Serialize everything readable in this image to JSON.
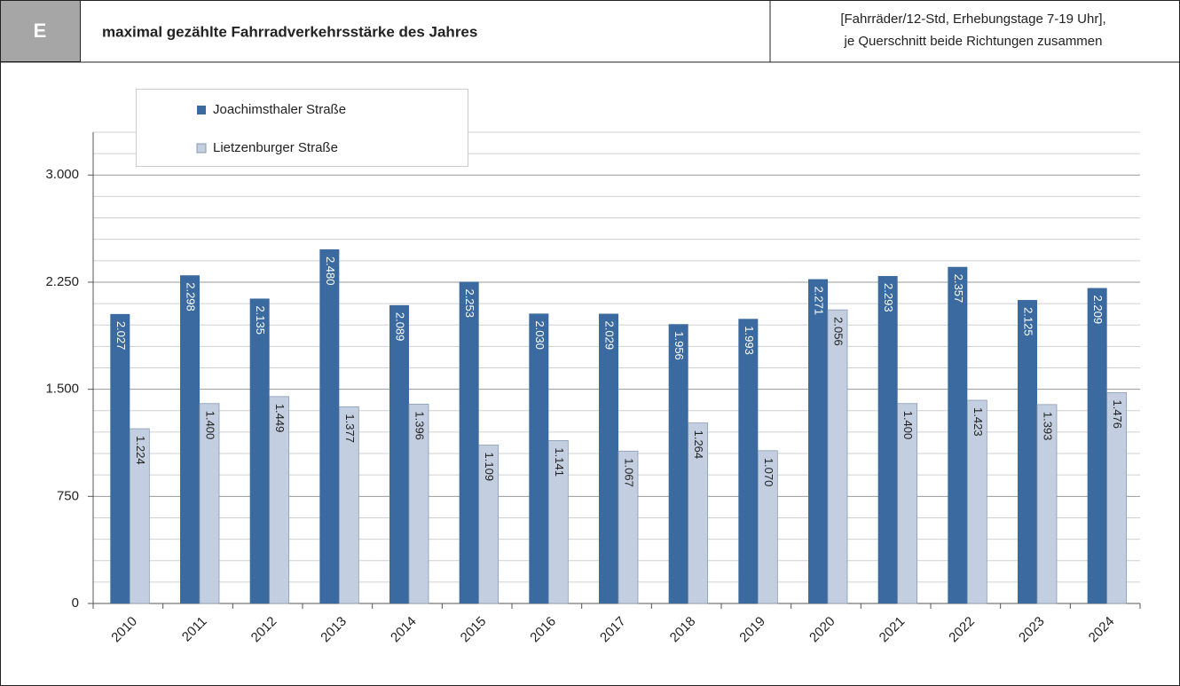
{
  "header": {
    "letter": "E",
    "title": "maximal gezählte Fahrradverkehrsstärke des Jahres",
    "unit_lines": [
      "[Fahrräder/12-Std, Erhebungstage 7-19 Uhr],",
      "je Querschnitt beide Richtungen zusammen"
    ]
  },
  "chart_data": {
    "type": "bar",
    "categories": [
      "2010",
      "2011",
      "2012",
      "2013",
      "2014",
      "2015",
      "2016",
      "2017",
      "2018",
      "2019",
      "2020",
      "2021",
      "2022",
      "2023",
      "2024"
    ],
    "series": [
      {
        "name": "Joachimsthaler Straße",
        "color": "#3a6a9f",
        "values": [
          2027,
          2298,
          2135,
          2480,
          2089,
          2253,
          2030,
          2029,
          1956,
          1993,
          2271,
          2293,
          2357,
          2125,
          2209
        ],
        "value_labels": [
          "2.027",
          "2.298",
          "2.135",
          "2.480",
          "2.089",
          "2.253",
          "2.030",
          "2.029",
          "1.956",
          "1.993",
          "2.271",
          "2.293",
          "2.357",
          "2.125",
          "2.209"
        ]
      },
      {
        "name": "Lietzenburger Straße",
        "color": "#c3cfe0",
        "values": [
          1224,
          1400,
          1449,
          1377,
          1396,
          1109,
          1141,
          1067,
          1264,
          1070,
          2056,
          1400,
          1423,
          1393,
          1476
        ],
        "value_labels": [
          "1.224",
          "1.400",
          "1.449",
          "1.377",
          "1.396",
          "1.109",
          "1.141",
          "1.067",
          "1.264",
          "1.070",
          "2.056",
          "1.400",
          "1.423",
          "1.393",
          "1.476"
        ]
      }
    ],
    "ylim": [
      0,
      3300
    ],
    "yticks": [
      0,
      750,
      {
        "value": 1500,
        "label": "1.500"
      },
      {
        "value": 2250,
        "label": "2.250"
      },
      {
        "value": 3000,
        "label": "3.000"
      }
    ],
    "minor_yticks": [
      150,
      300,
      450,
      600,
      900,
      1050,
      1200,
      1350,
      1650,
      1800,
      1950,
      2100,
      2400,
      2550,
      2700,
      2850,
      3150,
      3300
    ],
    "grid": true,
    "legend": "upper left"
  }
}
